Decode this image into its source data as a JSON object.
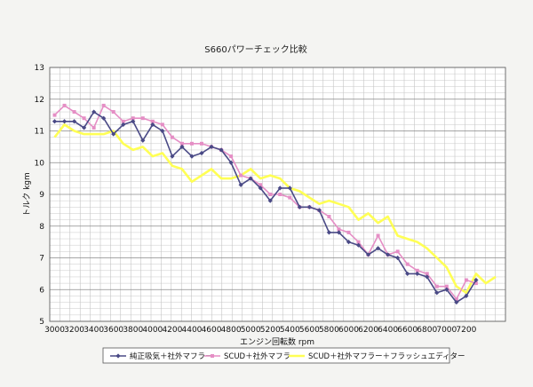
{
  "chart_data": {
    "type": "line",
    "title": "S660パワーチェック比較",
    "xlabel": "エンジン回転数 rpm",
    "ylabel": "トルク kgm",
    "ylim": [
      5,
      13
    ],
    "yticks": [
      "5",
      "6",
      "7",
      "8",
      "9",
      "10",
      "11",
      "12",
      "13"
    ],
    "xtick_labels": [
      "3000",
      "3200",
      "3400",
      "3600",
      "3800",
      "4000",
      "4200",
      "4400",
      "4600",
      "4800",
      "5000",
      "5200",
      "5400",
      "5600",
      "5800",
      "6000",
      "6200",
      "6400",
      "6600",
      "6800",
      "7000",
      "7200"
    ],
    "xlim": [
      2950,
      7600
    ],
    "grid": true,
    "legend_position": "bottom",
    "series": [
      {
        "name": "純正吸気＋社外マフラー",
        "color": "#4a4a86",
        "marker": "diamond",
        "x": [
          3000,
          3100,
          3200,
          3300,
          3400,
          3500,
          3600,
          3700,
          3800,
          3900,
          4000,
          4100,
          4200,
          4300,
          4400,
          4500,
          4600,
          4700,
          4800,
          4900,
          5000,
          5100,
          5200,
          5300,
          5400,
          5500,
          5600,
          5700,
          5800,
          5900,
          6000,
          6100,
          6200,
          6300,
          6400,
          6500,
          6600,
          6700,
          6800,
          6900,
          7000,
          7100,
          7200,
          7300
        ],
        "y": [
          11.3,
          11.3,
          11.3,
          11.1,
          11.6,
          11.4,
          10.9,
          11.2,
          11.3,
          10.7,
          11.2,
          11.0,
          10.2,
          10.5,
          10.2,
          10.3,
          10.5,
          10.4,
          10.0,
          9.3,
          9.5,
          9.2,
          8.8,
          9.2,
          9.2,
          8.6,
          8.6,
          8.5,
          7.8,
          7.8,
          7.5,
          7.4,
          7.1,
          7.3,
          7.1,
          7.0,
          6.5,
          6.5,
          6.4,
          5.9,
          6.0,
          5.6,
          5.8,
          6.3
        ]
      },
      {
        "name": "SCUD＋社外マフラー",
        "color": "#e58ec5",
        "marker": "square",
        "x": [
          3000,
          3100,
          3200,
          3300,
          3400,
          3500,
          3600,
          3700,
          3800,
          3900,
          4000,
          4100,
          4200,
          4300,
          4400,
          4500,
          4600,
          4700,
          4800,
          4900,
          5000,
          5100,
          5200,
          5300,
          5400,
          5500,
          5600,
          5700,
          5800,
          5900,
          6000,
          6100,
          6200,
          6300,
          6400,
          6500,
          6600,
          6700,
          6800,
          6900,
          7000,
          7100,
          7200,
          7300
        ],
        "y": [
          11.5,
          11.8,
          11.6,
          11.4,
          11.1,
          11.8,
          11.6,
          11.3,
          11.4,
          11.4,
          11.3,
          11.2,
          10.8,
          10.6,
          10.6,
          10.6,
          10.5,
          10.4,
          10.2,
          9.6,
          9.5,
          9.3,
          9.0,
          9.0,
          8.9,
          8.6,
          8.6,
          8.5,
          8.3,
          7.9,
          7.8,
          7.5,
          7.1,
          7.7,
          7.1,
          7.2,
          6.8,
          6.6,
          6.5,
          6.1,
          6.1,
          5.7,
          6.3,
          6.2
        ]
      },
      {
        "name": "SCUD＋社外マフラー＋フラッシュエディター",
        "color": "#ffff55",
        "marker": "square",
        "x": [
          3000,
          3100,
          3200,
          3300,
          3400,
          3500,
          3600,
          3700,
          3800,
          3900,
          4000,
          4100,
          4200,
          4300,
          4400,
          4500,
          4600,
          4700,
          4800,
          4900,
          5000,
          5100,
          5200,
          5300,
          5400,
          5500,
          5600,
          5700,
          5800,
          5900,
          6000,
          6100,
          6200,
          6300,
          6400,
          6500,
          6600,
          6700,
          6800,
          6900,
          7000,
          7100,
          7200,
          7300,
          7400,
          7500
        ],
        "y": [
          10.8,
          11.2,
          11.0,
          10.9,
          10.9,
          10.9,
          11.0,
          10.6,
          10.4,
          10.5,
          10.2,
          10.3,
          9.9,
          9.8,
          9.4,
          9.6,
          9.8,
          9.5,
          9.5,
          9.6,
          9.8,
          9.5,
          9.6,
          9.5,
          9.2,
          9.1,
          8.9,
          8.7,
          8.8,
          8.7,
          8.6,
          8.2,
          8.4,
          8.1,
          8.3,
          7.7,
          7.6,
          7.5,
          7.3,
          7.0,
          6.7,
          6.1,
          5.9,
          6.5,
          6.2,
          6.4
        ]
      }
    ]
  }
}
